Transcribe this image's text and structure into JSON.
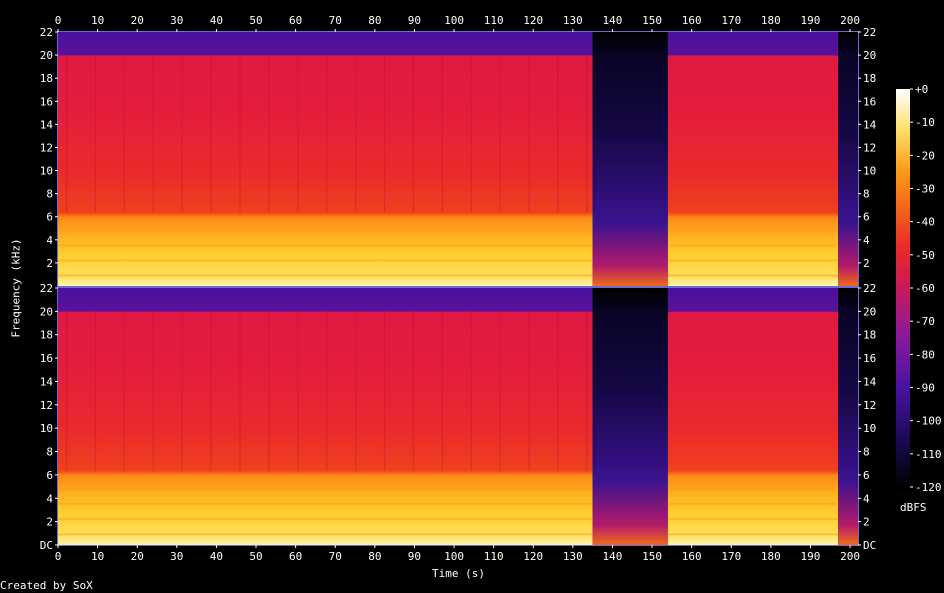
{
  "chart_data": {
    "type": "heatmap",
    "title": "",
    "xlabel": "Time (s)",
    "ylabel": "Frequency (kHz)",
    "xlim": [
      0,
      202
    ],
    "ylim": [
      0,
      22
    ],
    "x_ticks": [
      0,
      10,
      20,
      30,
      40,
      50,
      60,
      70,
      80,
      90,
      100,
      110,
      120,
      130,
      140,
      150,
      160,
      170,
      180,
      190,
      200
    ],
    "y_ticks": [
      {
        "value": 0,
        "label": "DC"
      },
      {
        "value": 2,
        "label": "2"
      },
      {
        "value": 4,
        "label": "4"
      },
      {
        "value": 6,
        "label": "6"
      },
      {
        "value": 8,
        "label": "8"
      },
      {
        "value": 10,
        "label": "10"
      },
      {
        "value": 12,
        "label": "12"
      },
      {
        "value": 14,
        "label": "14"
      },
      {
        "value": 16,
        "label": "16"
      },
      {
        "value": 18,
        "label": "18"
      },
      {
        "value": 20,
        "label": "20"
      },
      {
        "value": 22,
        "label": "22"
      }
    ],
    "channels": 2,
    "colorbar": {
      "label": "dBFS",
      "range": [
        -120,
        0
      ],
      "ticks": [
        "+0",
        "-10",
        "-20",
        "-30",
        "-40",
        "-50",
        "-60",
        "-70",
        "-80",
        "-90",
        "-100",
        "-110",
        "-120"
      ]
    },
    "segments_s": [
      {
        "start": 0,
        "end": 135,
        "level": "loud"
      },
      {
        "start": 135,
        "end": 154,
        "level": "quiet"
      },
      {
        "start": 154,
        "end": 197,
        "level": "loud"
      },
      {
        "start": 197,
        "end": 202,
        "level": "fade"
      }
    ],
    "spectral_profile_khz": {
      "bright_band_max": 6,
      "mid_band_max": 20,
      "cutoff": 20
    },
    "colors": {
      "background": "#000000",
      "frame": "#6a6ad0",
      "text": "#ffffff"
    }
  },
  "footer": {
    "credit": "Created by SoX"
  }
}
